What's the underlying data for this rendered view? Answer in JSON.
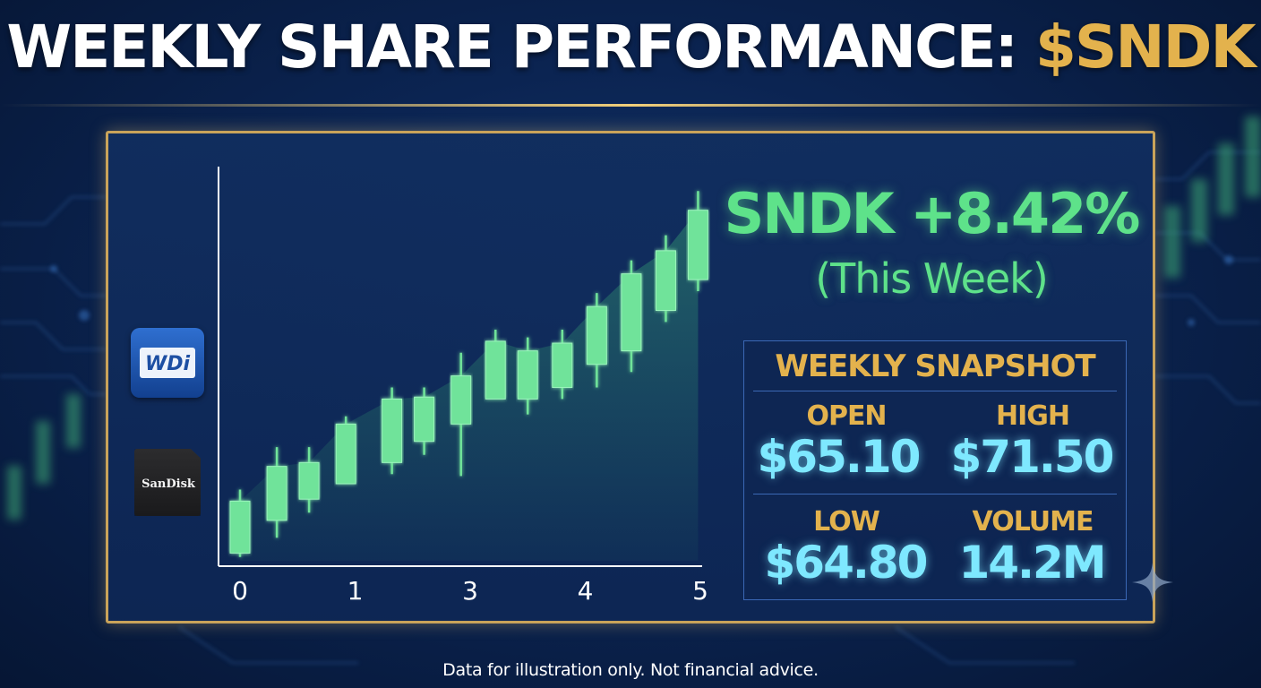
{
  "title": {
    "main": "WEEKLY SHARE PERFORMANCE: ",
    "ticker": "$SNDK"
  },
  "headline": {
    "change": "SNDK +8.42%",
    "period": "(This Week)"
  },
  "snapshot": {
    "title": "WEEKLY SNAPSHOT",
    "open_label": "OPEN",
    "open_value": "$65.10",
    "high_label": "HIGH",
    "high_value": "$71.50",
    "low_label": "LOW",
    "low_value": "$64.80",
    "volume_label": "VOLUME",
    "volume_value": "14.2M"
  },
  "logos": {
    "wd": "WDi",
    "sandisk": "SanDisk"
  },
  "footer": "Data for illustration only. Not financial advice.",
  "colors": {
    "accent_gold": "#e3b24d",
    "positive_green": "#5ee28a",
    "value_cyan": "#7ee8ff",
    "candle_green": "#6fe39a"
  },
  "chart_data": {
    "type": "candlestick",
    "x_ticks": [
      "0",
      "1",
      "3",
      "4",
      "5"
    ],
    "x_tick_positions": [
      0,
      1,
      2,
      3,
      4
    ],
    "y_axis": {
      "labels": "none",
      "range": [
        0,
        10
      ]
    },
    "candles": [
      {
        "x": 0.0,
        "open": 0.2,
        "close": 1.55,
        "low": 0.1,
        "high": 1.85
      },
      {
        "x": 0.32,
        "open": 1.05,
        "close": 2.45,
        "low": 0.6,
        "high": 2.95
      },
      {
        "x": 0.6,
        "open": 1.6,
        "close": 2.55,
        "low": 1.25,
        "high": 2.95
      },
      {
        "x": 0.92,
        "open": 2.0,
        "close": 3.55,
        "low": 2.0,
        "high": 3.75
      },
      {
        "x": 1.32,
        "open": 2.55,
        "close": 4.2,
        "low": 2.25,
        "high": 4.5
      },
      {
        "x": 1.6,
        "open": 3.1,
        "close": 4.25,
        "low": 2.75,
        "high": 4.5
      },
      {
        "x": 1.92,
        "open": 3.55,
        "close": 4.8,
        "low": 2.2,
        "high": 5.4
      },
      {
        "x": 2.22,
        "open": 4.2,
        "close": 5.7,
        "low": 4.2,
        "high": 6.0
      },
      {
        "x": 2.5,
        "open": 4.2,
        "close": 5.45,
        "low": 3.8,
        "high": 5.8
      },
      {
        "x": 2.8,
        "open": 4.5,
        "close": 5.65,
        "low": 4.2,
        "high": 6.0
      },
      {
        "x": 3.1,
        "open": 5.1,
        "close": 6.6,
        "low": 4.5,
        "high": 6.95
      },
      {
        "x": 3.4,
        "open": 5.45,
        "close": 7.45,
        "low": 4.9,
        "high": 7.8
      },
      {
        "x": 3.7,
        "open": 6.5,
        "close": 8.05,
        "low": 6.2,
        "high": 8.45
      },
      {
        "x": 3.98,
        "open": 7.3,
        "close": 9.1,
        "low": 7.0,
        "high": 9.6
      }
    ],
    "title": "",
    "xlabel": "",
    "ylabel": "",
    "grid": false,
    "legend": "none"
  }
}
